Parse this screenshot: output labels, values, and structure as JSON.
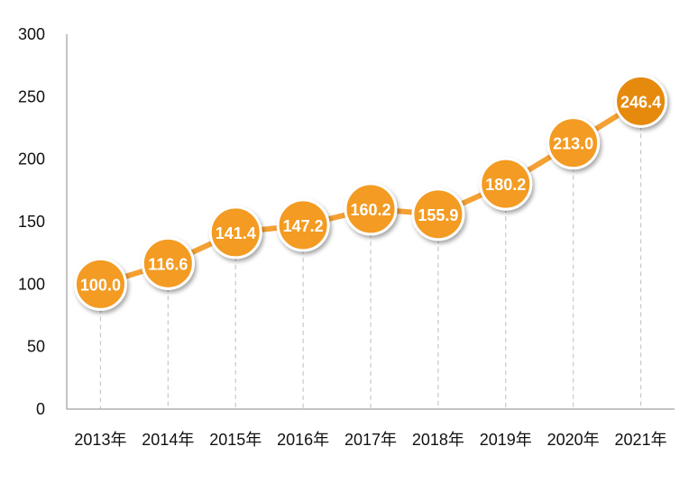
{
  "chart_data": {
    "type": "line",
    "title": "",
    "xlabel": "",
    "ylabel": "",
    "categories": [
      "2013年",
      "2014年",
      "2015年",
      "2016年",
      "2017年",
      "2018年",
      "2019年",
      "2020年",
      "2021年"
    ],
    "series": [
      {
        "values": [
          100.0,
          116.6,
          141.4,
          147.2,
          160.2,
          155.9,
          180.2,
          213.0,
          246.4
        ]
      }
    ],
    "data_labels": [
      "100.0",
      "116.6",
      "141.4",
      "147.2",
      "160.2",
      "155.9",
      "180.2",
      "213.0",
      "246.4"
    ],
    "ylim": [
      0,
      300
    ],
    "yticks": [
      0,
      50,
      100,
      150,
      200,
      250,
      300
    ],
    "grid": false,
    "legend": "none",
    "colors": {
      "line": "#F5A033",
      "marker": "#F39B22",
      "marker_last": "#E58A10",
      "marker_border": "#ffffff",
      "drop_line": "#c8c8c8",
      "axis": "#888888"
    }
  }
}
